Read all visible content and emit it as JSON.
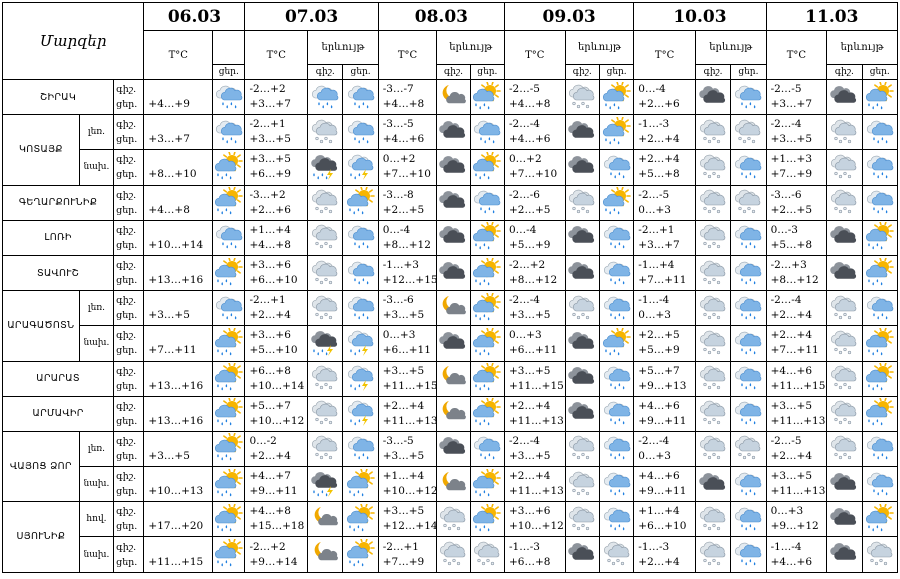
{
  "header": {
    "corner_label": "Մարզեր",
    "temp_label": "T°C",
    "weather_label": "երևույթ",
    "night_label": "գիշ.",
    "day_label": "ցեր.",
    "dates": [
      "06.03",
      "07.03",
      "08.03",
      "09.03",
      "10.03",
      "11.03"
    ]
  },
  "rows": [
    {
      "region": "ՇԻՐԱԿ",
      "part": "",
      "tod": [
        "գիշ.",
        "ցեր."
      ],
      "temps": [
        "+4…+9",
        "-2…+2\n+3…+7",
        "-3…-7\n+4…+8",
        "-2…-5\n+4…+8",
        "0…-4\n+2…+6",
        "-2…-5\n+3…+7"
      ],
      "icons": [
        "cloud-rain-icon",
        "cloud-rain-icon",
        "cloud-rain-icon",
        "moon-cloud-icon",
        "sun-cloud-rain-icon",
        "cloud-snow-icon",
        "sun-cloud-rain-icon",
        "dark-cloud-icon",
        "cloud-rain-icon",
        "dark-cloud-icon",
        "sun-cloud-rain-icon"
      ]
    },
    {
      "region": "ԿՈՏԱՅՔ",
      "part": "լեռ.",
      "tod": [
        "գիշ.",
        "ցեր."
      ],
      "temps": [
        "+3…+7",
        "-2…+1\n+3…+5",
        "-3…-5\n+4…+6",
        "-2…-4\n+4…+6",
        "-1…-3\n+2…+4",
        "-2…-4\n+3…+5"
      ],
      "icons": [
        "cloud-rain-icon",
        "cloud-snow-icon",
        "cloud-rain-icon",
        "dark-cloud-icon",
        "cloud-rain-icon",
        "dark-cloud-icon",
        "sun-cloud-rain-icon",
        "cloud-snow-icon",
        "cloud-snow-icon",
        "cloud-snow-icon",
        "cloud-rain-icon"
      ]
    },
    {
      "region": "",
      "part": "նախ.",
      "tod": [
        "գիշ.",
        "ցեր."
      ],
      "temps": [
        "+8…+10",
        "+3…+5\n+6…+9",
        "0…+2\n+7…+10",
        "0…+2\n+7…+10",
        "+2…+4\n+5…+8",
        "+1…+3\n+7…+9"
      ],
      "icons": [
        "sun-cloud-rain-icon",
        "storm-cloud-icon",
        "cloud-thunder-icon",
        "dark-cloud-icon",
        "sun-cloud-rain-icon",
        "dark-cloud-icon",
        "cloud-rain-icon",
        "cloud-snow-icon",
        "cloud-rain-icon",
        "cloud-snow-icon",
        "cloud-rain-icon"
      ]
    },
    {
      "region": "ԳԵՂԱՐՔՈՒՆԻՔ",
      "part": "",
      "tod": [
        "գիշ.",
        "ցեր."
      ],
      "temps": [
        "+4…+8",
        "-3…+2\n+2…+6",
        "-3…-8\n+2…+5",
        "-2…-6\n+2…+5",
        "-2…-5\n0…+3",
        "-3…-6\n+2…+5"
      ],
      "icons": [
        "sun-cloud-rain-icon",
        "cloud-snow-icon",
        "sun-cloud-rain-icon",
        "dark-cloud-icon",
        "cloud-rain-icon",
        "cloud-snow-icon",
        "sun-cloud-rain-icon",
        "cloud-snow-icon",
        "cloud-snow-icon",
        "cloud-snow-icon",
        "cloud-rain-icon"
      ]
    },
    {
      "region": "ԼՈՌԻ",
      "part": "",
      "tod": [
        "գիշ.",
        "ցեր."
      ],
      "temps": [
        "+10…+14",
        "+1…+4\n+4…+8",
        "0…-4\n+8…+12",
        "0…-4\n+5…+9",
        "-2…+1\n+3…+7",
        "0…-3\n+5…+8"
      ],
      "icons": [
        "cloud-rain-icon",
        "cloud-snow-icon",
        "cloud-rain-icon",
        "dark-cloud-icon",
        "sun-cloud-rain-icon",
        "dark-cloud-icon",
        "cloud-rain-icon",
        "cloud-snow-icon",
        "cloud-rain-icon",
        "dark-cloud-icon",
        "sun-cloud-rain-icon"
      ]
    },
    {
      "region": "ՏԱՎՈՒՇ",
      "part": "",
      "tod": [
        "գիշ.",
        "ցեր."
      ],
      "temps": [
        "+13…+16",
        "+3…+6\n+6…+10",
        "-1…+3\n+12…+15",
        "-2…+2\n+8…+12",
        "-1…+4\n+7…+11",
        "-2…+3\n+8…+12"
      ],
      "icons": [
        "sun-cloud-rain-icon",
        "cloud-snow-icon",
        "cloud-rain-icon",
        "dark-cloud-icon",
        "sun-cloud-rain-icon",
        "dark-cloud-icon",
        "cloud-rain-icon",
        "cloud-snow-icon",
        "cloud-rain-icon",
        "dark-cloud-icon",
        "sun-cloud-rain-icon"
      ]
    },
    {
      "region": "ԱՐԱԳԱԾՈՏՆ",
      "part": "լեռ.",
      "tod": [
        "գիշ.",
        "ցեր."
      ],
      "temps": [
        "+3…+5",
        "-2…+1\n+2…+4",
        "-3…-6\n+3…+5",
        "-2…-4\n+3…+5",
        "-1…-4\n0…+3",
        "-2…-4\n+2…+4"
      ],
      "icons": [
        "cloud-rain-icon",
        "cloud-snow-icon",
        "cloud-rain-icon",
        "moon-cloud-icon",
        "sun-cloud-rain-icon",
        "cloud-snow-icon",
        "cloud-rain-icon",
        "cloud-snow-icon",
        "cloud-rain-icon",
        "cloud-snow-icon",
        "cloud-rain-icon"
      ]
    },
    {
      "region": "",
      "part": "նախ.",
      "tod": [
        "գիշ.",
        "ցեր."
      ],
      "temps": [
        "+7…+11",
        "+3…+6\n+5…+10",
        "0…+3\n+6…+11",
        "0…+3\n+6…+11",
        "+2…+5\n+5…+9",
        "+2…+4\n+7…+11"
      ],
      "icons": [
        "sun-cloud-rain-icon",
        "storm-cloud-icon",
        "cloud-thunder-icon",
        "dark-cloud-icon",
        "sun-cloud-rain-icon",
        "dark-cloud-icon",
        "sun-cloud-rain-icon",
        "cloud-snow-icon",
        "cloud-rain-icon",
        "cloud-snow-icon",
        "sun-cloud-rain-icon"
      ]
    },
    {
      "region": "ԱՐԱՐԱՏ",
      "part": "",
      "tod": [
        "գիշ.",
        "ցեր."
      ],
      "temps": [
        "+13…+16",
        "+6…+8\n+10…+14",
        "+3…+5\n+11…+15",
        "+3…+5\n+11…+15",
        "+5…+7\n+9…+13",
        "+4…+6\n+11…+15"
      ],
      "icons": [
        "sun-cloud-rain-icon",
        "cloud-snow-icon",
        "cloud-thunder-icon",
        "moon-cloud-icon",
        "sun-cloud-rain-icon",
        "dark-cloud-icon",
        "cloud-rain-icon",
        "cloud-snow-icon",
        "cloud-rain-icon",
        "cloud-snow-icon",
        "sun-cloud-rain-icon"
      ]
    },
    {
      "region": "ԱՐՄԱՎԻՐ",
      "part": "",
      "tod": [
        "գիշ.",
        "ցեր."
      ],
      "temps": [
        "+13…+16",
        "+5…+7\n+10…+12",
        "+2…+4\n+11…+13",
        "+2…+4\n+11…+13",
        "+4…+6\n+9…+11",
        "+3…+5\n+11…+13"
      ],
      "icons": [
        "sun-cloud-rain-icon",
        "cloud-snow-icon",
        "cloud-thunder-icon",
        "moon-cloud-icon",
        "sun-cloud-rain-icon",
        "dark-cloud-icon",
        "cloud-rain-icon",
        "cloud-snow-icon",
        "cloud-rain-icon",
        "cloud-snow-icon",
        "sun-cloud-rain-icon"
      ]
    },
    {
      "region": "ՎԱՅՈՑ ՁՈՐ",
      "part": "լեռ.",
      "tod": [
        "գիշ.",
        "ցեր."
      ],
      "temps": [
        "+3…+5",
        "0…-2\n+2…+4",
        "-3…-5\n+3…+5",
        "-2…-4\n+3…+5",
        "-2…-4\n0…+3",
        "-2…-5\n+2…+4"
      ],
      "icons": [
        "sun-cloud-rain-icon",
        "cloud-snow-icon",
        "cloud-rain-icon",
        "dark-cloud-icon",
        "cloud-rain-icon",
        "cloud-snow-icon",
        "cloud-rain-icon",
        "cloud-snow-icon",
        "cloud-snow-icon",
        "cloud-snow-icon",
        "cloud-rain-icon"
      ]
    },
    {
      "region": "",
      "part": "նախ.",
      "tod": [
        "գիշ.",
        "ցեր."
      ],
      "temps": [
        "+10…+13",
        "+4…+7\n+9…+11",
        "+1…+4\n+10…+12",
        "+2…+4\n+11…+13",
        "+4…+6\n+9…+11",
        "+3…+5\n+11…+13"
      ],
      "icons": [
        "sun-cloud-rain-icon",
        "storm-cloud-icon",
        "sun-cloud-rain-icon",
        "moon-cloud-icon",
        "sun-cloud-rain-icon",
        "cloud-snow-icon",
        "cloud-rain-icon",
        "dark-cloud-icon",
        "cloud-rain-icon",
        "dark-cloud-icon",
        "cloud-rain-icon"
      ]
    },
    {
      "region": "ՍՅՈՒՆԻՔ",
      "part": "հով.",
      "tod": [
        "գիշ.",
        "ցեր."
      ],
      "temps": [
        "+17…+20",
        "+4…+8\n+15…+18",
        "+3…+5\n+12…+14",
        "+3…+6\n+10…+12",
        "+1…+4\n+6…+10",
        "0…+3\n+9…+12"
      ],
      "icons": [
        "sun-cloud-rain-icon",
        "moon-cloud-icon",
        "sun-cloud-rain-icon",
        "cloud-snow-icon",
        "sun-cloud-rain-icon",
        "cloud-snow-icon",
        "cloud-rain-icon",
        "cloud-snow-icon",
        "cloud-rain-icon",
        "dark-cloud-icon",
        "sun-cloud-rain-icon"
      ]
    },
    {
      "region": "",
      "part": "նախ.",
      "tod": [
        "գիշ.",
        "ցեր."
      ],
      "temps": [
        "+11…+15",
        "-2…+2\n+9…+14",
        "-2…+1\n+7…+9",
        "-1…-3\n+6…+8",
        "-1…-3\n+2…+4",
        "-1…-4\n+4…+6"
      ],
      "icons": [
        "sun-cloud-rain-icon",
        "moon-cloud-icon",
        "sun-cloud-rain-icon",
        "cloud-snow-icon",
        "cloud-snow-icon",
        "dark-cloud-icon",
        "cloud-snow-icon",
        "cloud-snow-icon",
        "cloud-rain-icon",
        "dark-cloud-icon",
        "cloud-snow-icon"
      ]
    }
  ],
  "colors": {
    "sun": "#f7b500",
    "cloud_light": "#c6d3df",
    "cloud_blue": "#7fb4e6",
    "cloud_dark": "#4a4f57",
    "rain": "#1f7fe0",
    "lightning": "#f2c200",
    "moon": "#f0a800"
  }
}
